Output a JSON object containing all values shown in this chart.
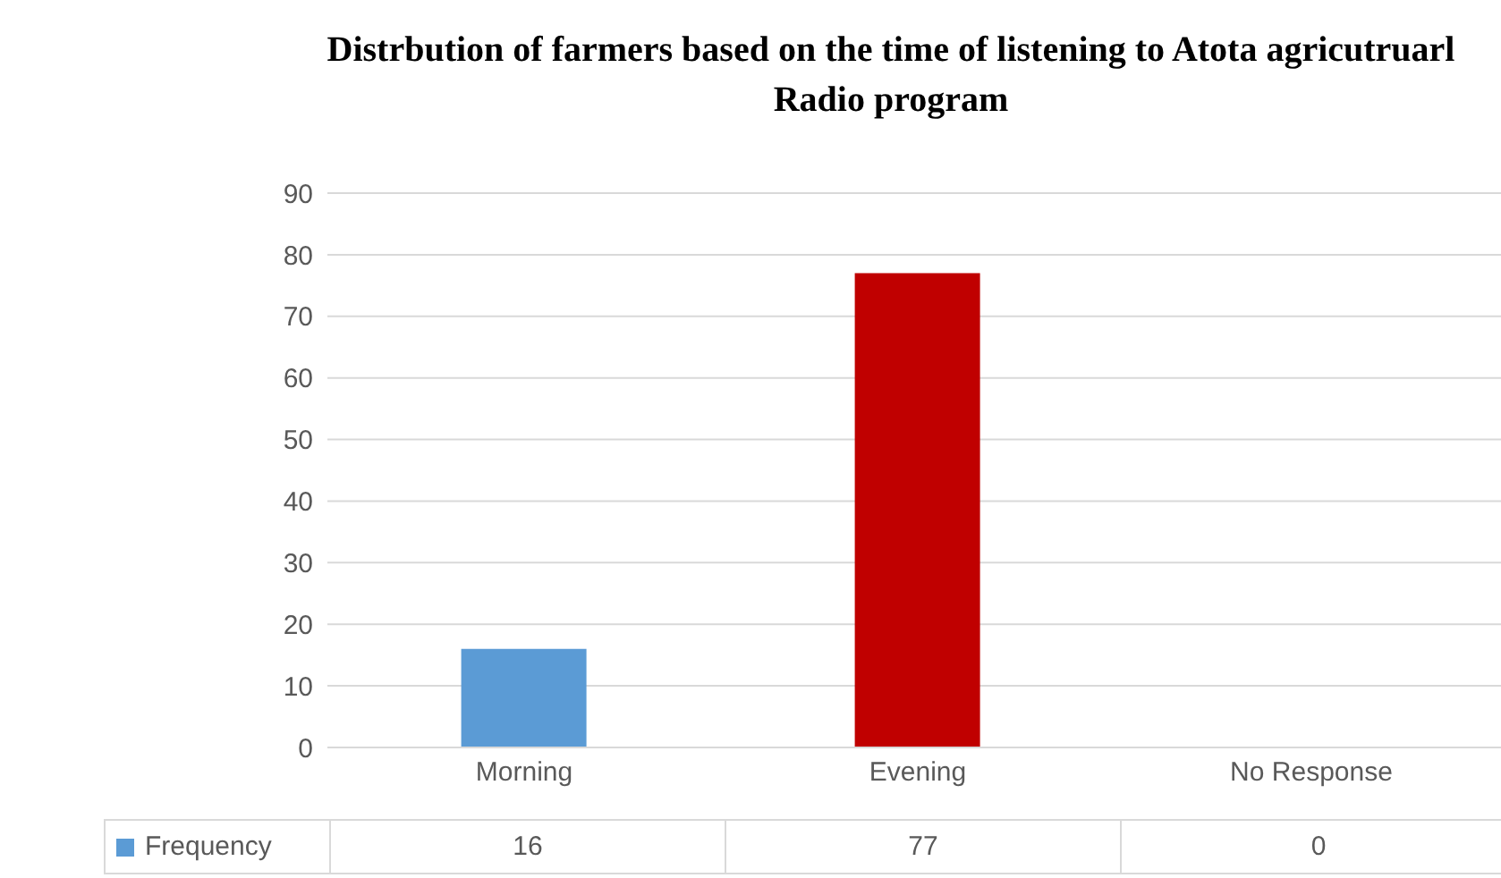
{
  "chart_data": {
    "type": "bar",
    "title": "Distrbution of farmers  based on the time of listening to Atota agricutruarl  Radio program",
    "categories": [
      "Morning",
      "Evening",
      "No Response"
    ],
    "series": [
      {
        "name": "Frequency",
        "color": "#5b9bd5",
        "colors": [
          "#5b9bd5",
          "#c00000",
          "#5b9bd5"
        ],
        "values": [
          16,
          77,
          0
        ]
      }
    ],
    "ylim": [
      0,
      90
    ],
    "yticks": [
      0,
      10,
      20,
      30,
      40,
      50,
      60,
      70,
      80,
      90
    ],
    "grid": "y",
    "data_labels": true,
    "legend": "bottom"
  }
}
